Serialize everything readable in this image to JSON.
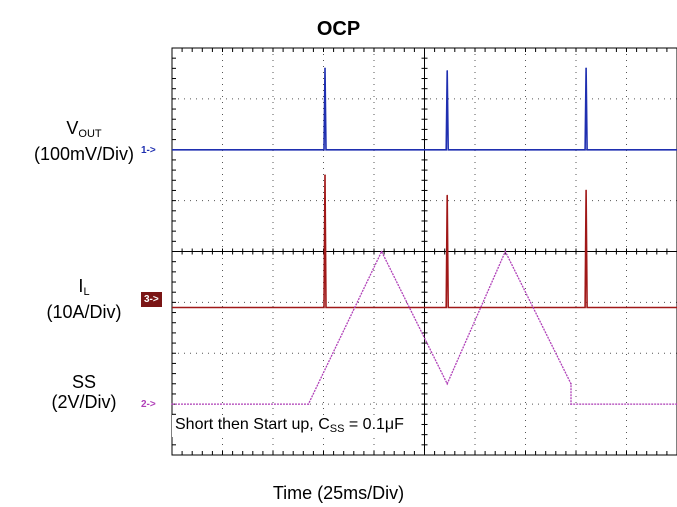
{
  "title": "OCP",
  "channels": {
    "vout": {
      "name_main": "V",
      "name_sub": "OUT",
      "scale": "(100mV/Div)",
      "marker": "1->",
      "color": "#1f2fb0"
    },
    "il": {
      "name_main": "I",
      "name_sub": "L",
      "scale": "(10A/Div)",
      "marker": "3->",
      "color": "#a01818"
    },
    "ss": {
      "name_main": "SS",
      "scale": "(2V/Div)",
      "marker": "2->",
      "color": "#b040b8"
    }
  },
  "annotation": {
    "prefix": "Short then Start up, C",
    "sub": "SS",
    "suffix": " = 0.1μF"
  },
  "x_label": "Time  (25ms/Div)",
  "chart_data": {
    "type": "line",
    "title": "OCP",
    "xlabel": "Time  (25ms/Div)",
    "x_units": "divisions",
    "xlim": [
      0,
      10
    ],
    "ylim_divisions": [
      0,
      8
    ],
    "grid": true,
    "series": [
      {
        "name": "VOUT",
        "scale": "100mV/Div",
        "baseline_div": 6.0,
        "spikes": [
          {
            "x": 3.03,
            "height_div": 1.6
          },
          {
            "x": 5.45,
            "height_div": 1.55
          },
          {
            "x": 8.2,
            "height_div": 1.6
          }
        ]
      },
      {
        "name": "IL",
        "scale": "10A/Div",
        "baseline_div": 2.9,
        "spikes": [
          {
            "x": 3.03,
            "height_div": 2.6
          },
          {
            "x": 5.45,
            "height_div": 2.2
          },
          {
            "x": 8.2,
            "height_div": 2.3
          }
        ]
      },
      {
        "name": "SS",
        "scale": "2V/Div",
        "x": [
          0,
          2.7,
          4.15,
          5.45,
          6.6,
          7.9,
          7.9,
          10
        ],
        "y": [
          1.0,
          1.0,
          4.0,
          1.4,
          4.0,
          1.4,
          1.0,
          1.0
        ]
      }
    ]
  }
}
